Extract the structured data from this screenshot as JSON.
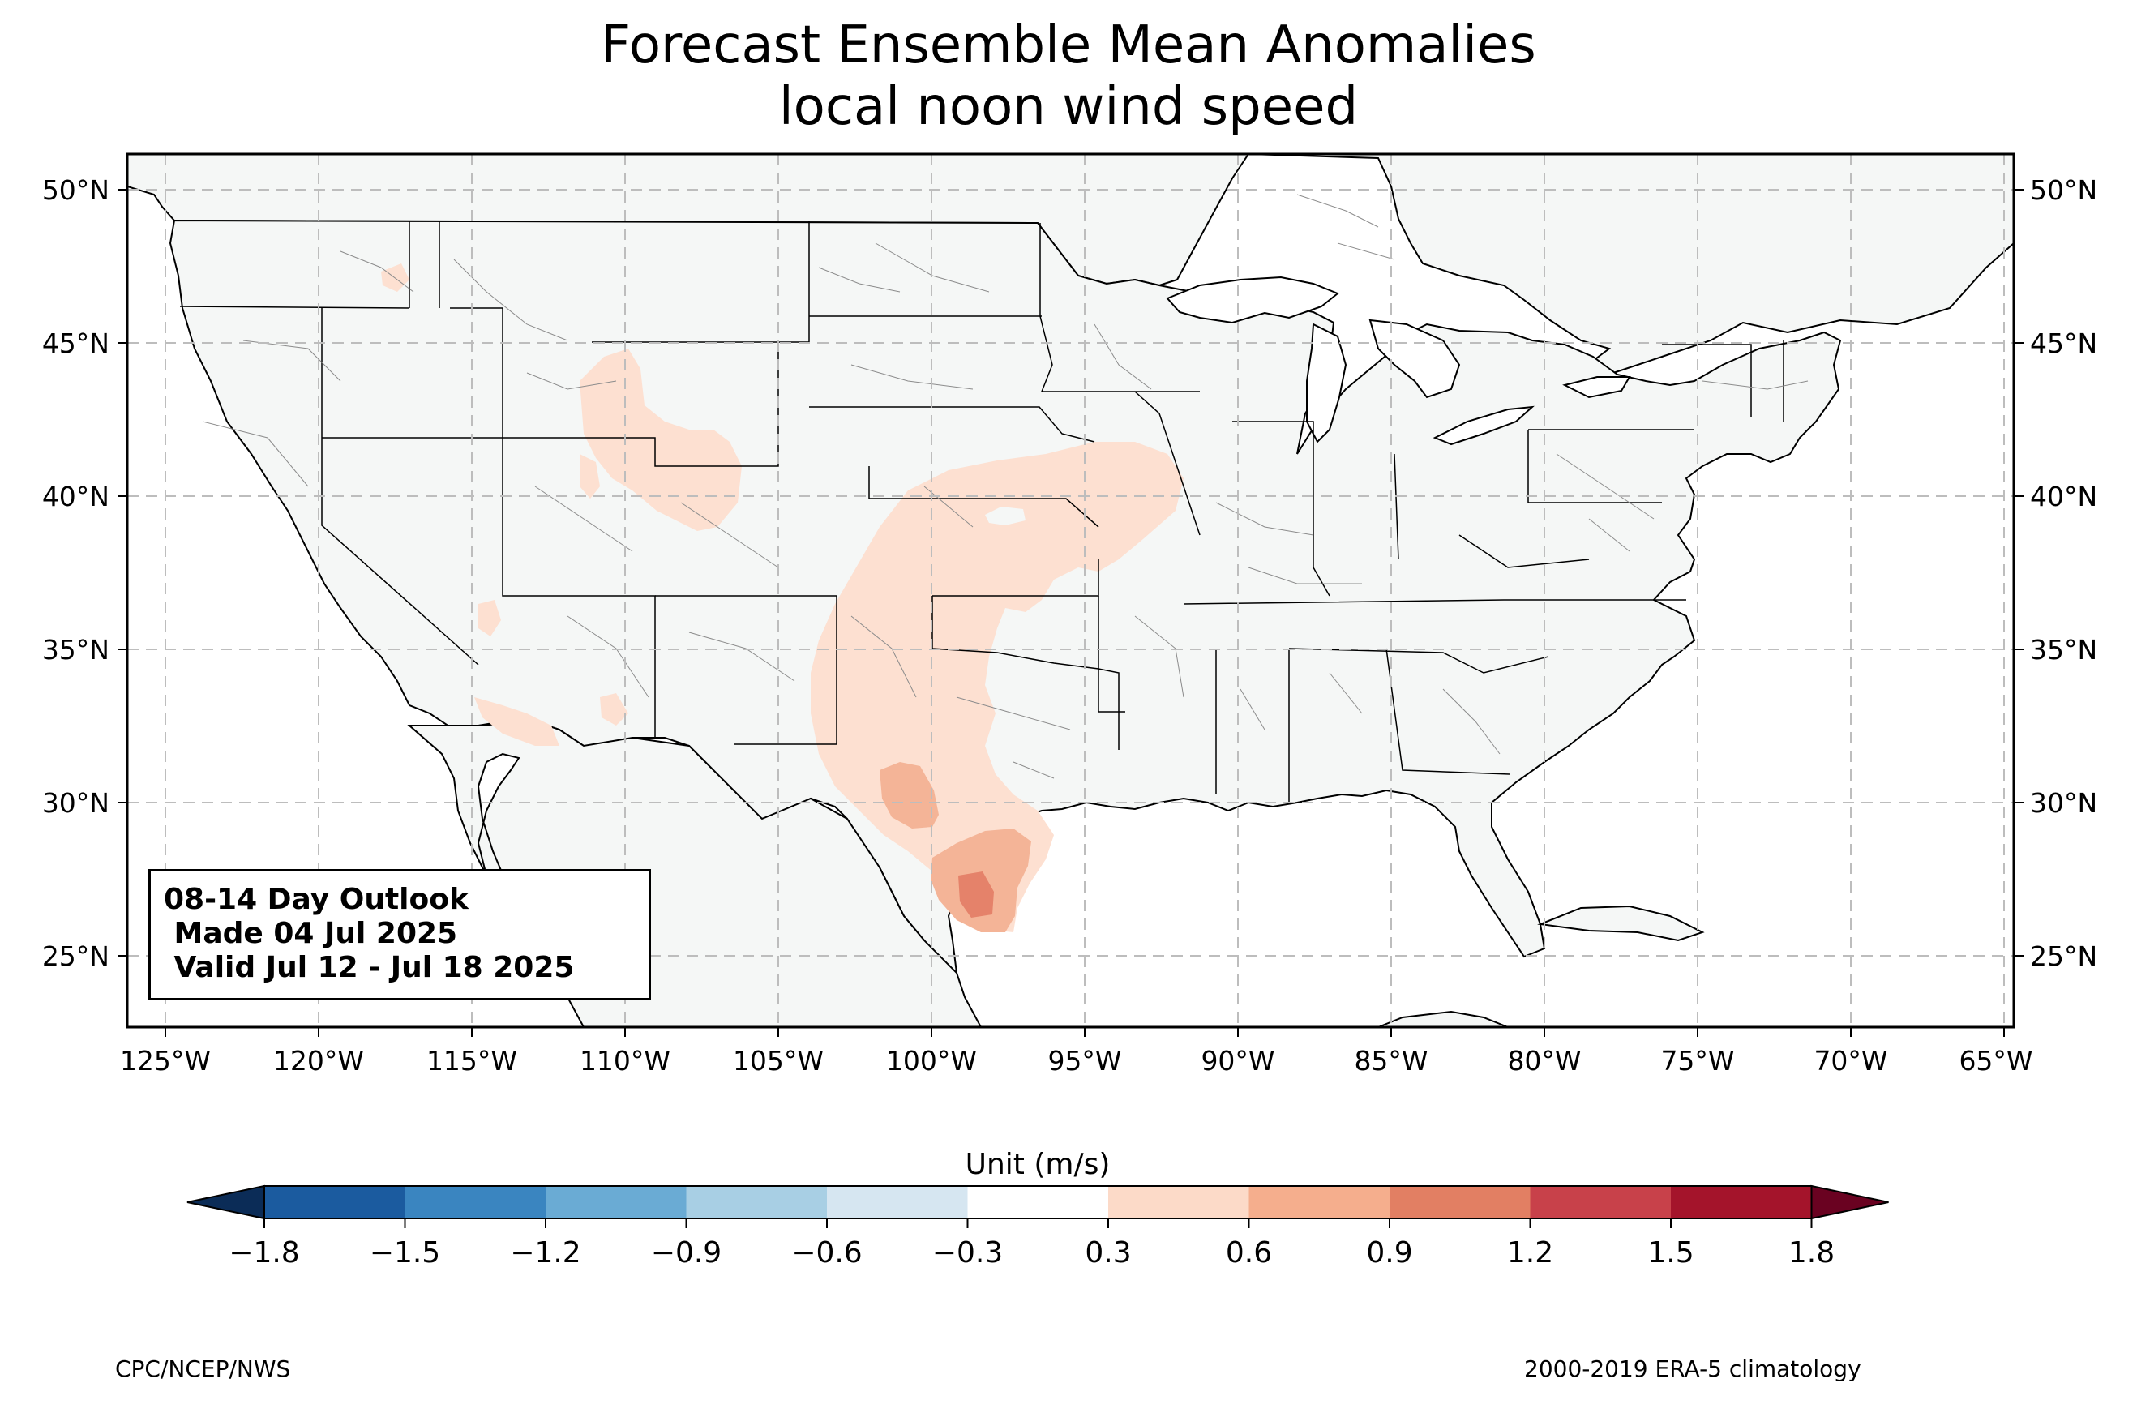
{
  "title": {
    "line1": "Forecast Ensemble Mean Anomalies",
    "line2": "local noon wind speed"
  },
  "outlook": {
    "line1": "08-14 Day Outlook",
    "line2": " Made 04 Jul 2025",
    "line3": " Valid Jul 12 - Jul 18 2025"
  },
  "axes": {
    "lon_labels": [
      "125°W",
      "120°W",
      "115°W",
      "110°W",
      "105°W",
      "100°W",
      "95°W",
      "90°W",
      "85°W",
      "80°W",
      "75°W",
      "70°W",
      "65°W"
    ],
    "lat_labels": [
      "50°N",
      "45°N",
      "40°N",
      "35°N",
      "30°N",
      "25°N"
    ],
    "lon_range": [
      -126.2,
      -64.9
    ],
    "lat_range": [
      22.8,
      51.2
    ],
    "grid": true
  },
  "colorbar": {
    "label": "Unit (m/s)",
    "ticks": [
      "−1.8",
      "−1.5",
      "−1.2",
      "−0.9",
      "−0.6",
      "−0.3",
      "0.3",
      "0.6",
      "0.9",
      "1.2",
      "1.5",
      "1.8"
    ],
    "colors": [
      "#1b5b9f",
      "#3a85c0",
      "#6aabd4",
      "#a8cfe4",
      "#d6e6f1",
      "#ffffff",
      "#fcdac8",
      "#f5ae8d",
      "#e27f63",
      "#c8414a",
      "#a4142b"
    ],
    "under_color": "#0b2c57",
    "over_color": "#6a0221"
  },
  "anomaly_colors": {
    "level_0_3": "#fde0d1",
    "level_0_6": "#f4b497",
    "level_0_9": "#e5826a"
  },
  "land_color": "#f5f7f6",
  "footer": {
    "left": "CPC/NCEP/NWS",
    "right": "2000-2019 ERA-5 climatology"
  }
}
